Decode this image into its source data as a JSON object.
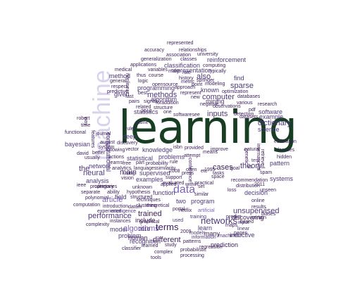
{
  "colors": {
    "c1": "#3c1f5a",
    "c2": "#4f3a7a",
    "c3": "#5b4b8a",
    "c4": "#7e64b8",
    "c5": "#9a8ad0",
    "c6": "#b7aee0",
    "hero": "#173d23",
    "machine": "#d9d2ef"
  },
  "hero_word": "learning",
  "machine_word": "machine",
  "words": [
    {
      "t": "represented",
      "c": "c1"
    },
    {
      "t": "accuracy",
      "c": "c1"
    },
    {
      "t": "relationships",
      "c": "c1"
    },
    {
      "t": "association",
      "c": "c1"
    },
    {
      "t": "university",
      "c": "c1"
    },
    {
      "t": "generalization",
      "c": "c1"
    },
    {
      "t": "classes",
      "c": "c1"
    },
    {
      "t": "reinforcement",
      "c": "c2"
    },
    {
      "t": "applications",
      "c": "c1"
    },
    {
      "t": "classification",
      "c": "c2"
    },
    {
      "t": "computing",
      "c": "c1"
    },
    {
      "t": "medical",
      "c": "c1"
    },
    {
      "t": "variables",
      "c": "c1"
    },
    {
      "t": "make",
      "c": "c1"
    },
    {
      "t": "rate",
      "c": "c1"
    },
    {
      "t": "typically",
      "c": "c1"
    },
    {
      "t": "method",
      "c": "c2"
    },
    {
      "t": "thus",
      "c": "c1"
    },
    {
      "t": "course",
      "c": "c1"
    },
    {
      "t": "history",
      "c": "c1"
    },
    {
      "t": "representation",
      "c": "c2"
    },
    {
      "t": "find",
      "c": "c2"
    },
    {
      "t": "general",
      "c": "c1"
    },
    {
      "t": "logic",
      "c": "c1"
    },
    {
      "t": "opensource",
      "c": "c1"
    },
    {
      "t": "also",
      "c": "c2"
    },
    {
      "t": "springer",
      "c": "c1"
    },
    {
      "t": "modeling",
      "c": "c1"
    },
    {
      "t": "respect",
      "c": "c1"
    },
    {
      "t": "nonlinear",
      "c": "c1"
    },
    {
      "t": "metric",
      "c": "c1"
    },
    {
      "t": "point",
      "c": "c1"
    },
    {
      "t": "sparse",
      "c": "c2"
    },
    {
      "t": "predictive",
      "c": "c1"
    },
    {
      "t": "programming",
      "c": "c2"
    },
    {
      "t": "approach",
      "c": "c1"
    },
    {
      "t": "known",
      "c": "c2"
    },
    {
      "t": "given",
      "c": "c2"
    },
    {
      "t": "best",
      "c": "c1"
    },
    {
      "t": "methods",
      "c": "c2"
    },
    {
      "t": "represent",
      "c": "c1"
    },
    {
      "t": "optimization",
      "c": "c1"
    },
    {
      "t": "fast",
      "c": "c1"
    },
    {
      "t": "algorithm",
      "c": "c2"
    },
    {
      "t": "new",
      "c": "c1"
    },
    {
      "t": "computer",
      "c": "c2"
    },
    {
      "t": "mining",
      "c": "c2"
    },
    {
      "t": "databases",
      "c": "c1"
    },
    {
      "t": "research",
      "c": "c1"
    },
    {
      "t": "pairs",
      "c": "c1"
    },
    {
      "t": "signal",
      "c": "c1"
    },
    {
      "t": "foraddition",
      "c": "c1"
    },
    {
      "t": "negative",
      "c": "c1"
    },
    {
      "t": "various",
      "c": "c1"
    },
    {
      "t": "pdf",
      "c": "c1"
    },
    {
      "t": "statistics",
      "c": "c2"
    },
    {
      "t": "related",
      "c": "c1"
    },
    {
      "t": "structure",
      "c": "c1"
    },
    {
      "t": "inputs",
      "c": "c2"
    },
    {
      "t": "observations",
      "c": "c1"
    },
    {
      "t": "software",
      "c": "c2"
    },
    {
      "t": "one",
      "c": "c1"
    },
    {
      "t": "softwaresee",
      "c": "c1"
    },
    {
      "t": "datasets",
      "c": "c1"
    },
    {
      "t": "example",
      "c": "c2"
    },
    {
      "t": "dictionary",
      "c": "c2"
    },
    {
      "t": "computational",
      "c": "c2"
    },
    {
      "t": "features",
      "c": "c1"
    },
    {
      "t": "rules",
      "c": "c1"
    },
    {
      "t": "game",
      "c": "c1"
    },
    {
      "t": "robert",
      "c": "c1"
    },
    {
      "t": "time",
      "c": "c1"
    },
    {
      "t": "journal",
      "c": "c1"
    },
    {
      "t": "deep",
      "c": "c2"
    },
    {
      "t": "functional",
      "c": "c1"
    },
    {
      "t": "august",
      "c": "c1"
    },
    {
      "t": "discovery",
      "c": "c1"
    },
    {
      "t": "science",
      "c": "c2"
    },
    {
      "t": "bayesian",
      "c": "c2"
    },
    {
      "t": "system",
      "c": "c1"
    },
    {
      "t": "estimation",
      "c": "c1"
    },
    {
      "t": "following",
      "c": "c1"
    },
    {
      "t": "vector",
      "c": "c1"
    },
    {
      "t": "knowledge",
      "c": "c2"
    },
    {
      "t": "isbn",
      "c": "c1"
    },
    {
      "t": "provided",
      "c": "c1"
    },
    {
      "t": "improve",
      "c": "c1"
    },
    {
      "t": "focuses",
      "c": "c1"
    },
    {
      "t": "david",
      "c": "c1"
    },
    {
      "t": "better",
      "c": "c1"
    },
    {
      "t": "actions",
      "c": "c1"
    },
    {
      "t": "statistical",
      "c": "c2"
    },
    {
      "t": "problems",
      "c": "c2"
    },
    {
      "t": "hidden",
      "c": "c1"
    },
    {
      "t": "usually",
      "c": "c1"
    },
    {
      "t": "learns",
      "c": "c1"
    },
    {
      "t": "free",
      "c": "c1"
    },
    {
      "t": "part",
      "c": "c1"
    },
    {
      "t": "probability",
      "c": "c1"
    },
    {
      "t": "rule",
      "c": "c1"
    },
    {
      "t": "pattern",
      "c": "c2"
    },
    {
      "t": "network",
      "c": "c2"
    },
    {
      "t": "analytics",
      "c": "c1"
    },
    {
      "t": "languages",
      "c": "c1"
    },
    {
      "t": "similarity",
      "c": "c1"
    },
    {
      "t": "spam",
      "c": "c1"
    },
    {
      "t": "neural",
      "c": "c2"
    },
    {
      "t": "main",
      "c": "c2"
    },
    {
      "t": "the",
      "c": "c2"
    },
    {
      "t": "using",
      "c": "c1"
    },
    {
      "t": "supervised",
      "c": "c2"
    },
    {
      "t": "2008",
      "c": "c1"
    },
    {
      "t": "press",
      "c": "c1"
    },
    {
      "t": "systems",
      "c": "c2"
    },
    {
      "t": "2011",
      "c": "c1"
    },
    {
      "t": "analysis",
      "c": "c2"
    },
    {
      "t": "vision",
      "c": "c1"
    },
    {
      "t": "examples",
      "c": "c2"
    },
    {
      "t": "support",
      "c": "c1"
    },
    {
      "t": "recommendation",
      "c": "c1"
    },
    {
      "t": "proprietary",
      "c": "c1"
    },
    {
      "t": "evaluated",
      "c": "c1"
    },
    {
      "t": "distribution",
      "c": "c1"
    },
    {
      "t": "unseen",
      "c": "c1"
    },
    {
      "t": "ieee",
      "c": "c1"
    },
    {
      "t": "categories",
      "c": "c1"
    },
    {
      "t": "unknown",
      "c": "c1"
    },
    {
      "t": "data",
      "c": "c4"
    },
    {
      "t": "applied",
      "c": "c1"
    },
    {
      "t": "loss",
      "c": "c1"
    },
    {
      "t": "separate",
      "c": "c1"
    },
    {
      "t": "ability",
      "c": "c1"
    },
    {
      "t": "hypothesis",
      "c": "c1"
    },
    {
      "t": "function",
      "c": "c2"
    },
    {
      "t": "similar",
      "c": "c1"
    },
    {
      "t": "decision",
      "c": "c2"
    },
    {
      "t": "polynomial",
      "c": "c1"
    },
    {
      "t": "article",
      "c": "c4"
    },
    {
      "t": "field",
      "c": "c2"
    },
    {
      "t": "structured",
      "c": "c1"
    },
    {
      "t": "techniques",
      "c": "c1"
    },
    {
      "t": "two",
      "c": "c2"
    },
    {
      "t": "program",
      "c": "c2"
    },
    {
      "t": "online",
      "c": "c1"
    },
    {
      "t": "computation",
      "c": "c1"
    },
    {
      "t": "introduction",
      "c": "c1"
    },
    {
      "t": "datum",
      "c": "c1"
    },
    {
      "t": "clustering",
      "c": "c1"
    },
    {
      "t": "theoretical",
      "c": "c1"
    },
    {
      "t": "portal",
      "c": "c1"
    },
    {
      "t": "results",
      "c": "c1"
    },
    {
      "t": "experience",
      "c": "c1"
    },
    {
      "t": "intelligence",
      "c": "c2"
    },
    {
      "t": "trained",
      "c": "c1"
    },
    {
      "t": "netflix",
      "c": "c1"
    },
    {
      "t": "artificial",
      "c": "c4"
    },
    {
      "t": "unsupervised",
      "c": "c2"
    },
    {
      "t": "performance",
      "c": "c2"
    },
    {
      "t": "include",
      "c": "c1"
    },
    {
      "t": "training",
      "c": "c2"
    },
    {
      "t": "networks",
      "c": "c2"
    },
    {
      "t": "discovering",
      "c": "c1"
    },
    {
      "t": "complexity",
      "c": "c1"
    },
    {
      "t": "instances",
      "c": "c1"
    },
    {
      "t": "used",
      "c": "c2"
    },
    {
      "t": "learn",
      "c": "c2"
    },
    {
      "t": "model",
      "c": "c2"
    },
    {
      "t": "algorithms",
      "c": "c4"
    },
    {
      "t": "terms",
      "c": "c1"
    },
    {
      "t": "based",
      "c": "c1"
    },
    {
      "t": "linear",
      "c": "c2"
    },
    {
      "t": "problem",
      "c": "c2"
    },
    {
      "t": "human",
      "c": "c1"
    },
    {
      "t": "2009",
      "c": "c1"
    },
    {
      "t": "models",
      "c": "c2"
    },
    {
      "t": "many",
      "c": "c1"
    },
    {
      "t": "machines",
      "c": "c2"
    },
    {
      "t": "inductive",
      "c": "c2"
    },
    {
      "t": "recognition",
      "c": "c2"
    },
    {
      "t": "different",
      "c": "c1"
    },
    {
      "t": "information",
      "c": "c2"
    },
    {
      "t": "prediction",
      "c": "c1"
    },
    {
      "t": "patterns",
      "c": "c1"
    },
    {
      "t": "classifier",
      "c": "c1"
    },
    {
      "t": "learned",
      "c": "c1"
    },
    {
      "t": "study",
      "c": "c1"
    },
    {
      "t": "regression",
      "c": "c1"
    },
    {
      "t": "complex",
      "c": "c1"
    },
    {
      "t": "probabilistic",
      "c": "c1"
    },
    {
      "t": "processing",
      "c": "c1"
    },
    {
      "t": "tools",
      "c": "c1"
    },
    {
      "t": "graphical",
      "c": "c1"
    },
    {
      "t": "tasks",
      "c": "c1"
    },
    {
      "t": "space",
      "c": "c1"
    },
    {
      "t": "test",
      "c": "c2"
    },
    {
      "t": "theory",
      "c": "c2"
    },
    {
      "t": "cases",
      "c": "c1"
    },
    {
      "t": "1995",
      "c": "c1"
    },
    {
      "t": "means",
      "c": "c1"
    },
    {
      "t": "often",
      "c": "c1"
    },
    {
      "t": "etc",
      "c": "c1"
    },
    {
      "t": "goal",
      "c": "c1"
    },
    {
      "t": "within",
      "c": "c1"
    },
    {
      "t": "practical",
      "c": "c1"
    },
    {
      "t": "set",
      "c": "c1"
    },
    {
      "t": "attempt",
      "c": "c1"
    },
    {
      "t": "2010",
      "c": "c1"
    },
    {
      "t": "maps",
      "c": "c1"
    },
    {
      "t": "pages",
      "c": "c1"
    },
    {
      "t": "certain",
      "c": "c1"
    },
    {
      "t": "biases",
      "c": "c1"
    },
    {
      "t": "natural",
      "c": "c1"
    },
    {
      "t": "2012",
      "c": "c1"
    },
    {
      "t": "vs",
      "c": "c1"
    },
    {
      "t": "genetic",
      "c": "c1"
    },
    {
      "t": "international",
      "c": "c1"
    },
    {
      "t": "retrieved",
      "c": "c1"
    },
    {
      "t": "detection",
      "c": "c1"
    },
    {
      "t": "conference",
      "c": "c1"
    },
    {
      "t": "predict",
      "c": "c1"
    },
    {
      "t": "input",
      "c": "c1"
    },
    {
      "t": "way",
      "c": "c1"
    }
  ]
}
